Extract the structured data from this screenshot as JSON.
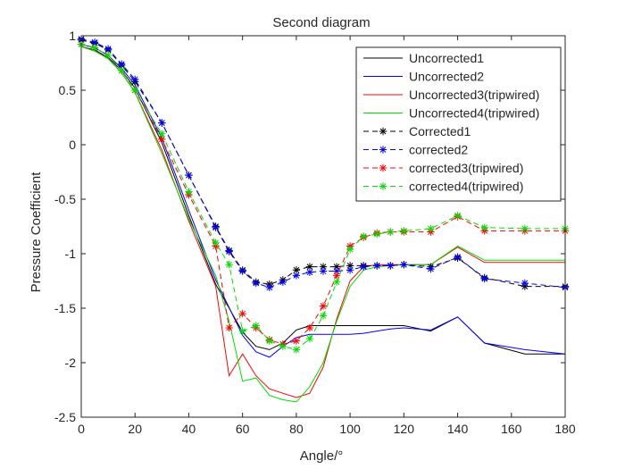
{
  "chart_data": {
    "type": "line",
    "title": "Second diagram",
    "xlabel": "Angle/°",
    "ylabel": "Pressure Coefficient",
    "xlim": [
      0,
      180
    ],
    "ylim": [
      -2.5,
      1
    ],
    "xticks": [
      0,
      20,
      40,
      60,
      80,
      100,
      120,
      140,
      160,
      180
    ],
    "xtick_labels": [
      "0",
      "20",
      "40",
      "60",
      "80",
      "100",
      "120",
      "140",
      "160",
      "180"
    ],
    "yticks": [
      -2.5,
      -2,
      -1.5,
      -1,
      -0.5,
      0,
      0.5,
      1
    ],
    "ytick_labels": [
      "-2.5",
      "-2",
      "-1.5",
      "-1",
      "-0.5",
      "0",
      "0.5",
      "1"
    ],
    "grid": false,
    "legend_position": "top-right",
    "series": [
      {
        "name": "Uncorrected1",
        "color": "#000000",
        "style": "solid",
        "marker": "none",
        "x": [
          0,
          5,
          10,
          15,
          20,
          30,
          40,
          50,
          60,
          65,
          70,
          75,
          80,
          85,
          90,
          95,
          100,
          105,
          110,
          115,
          120,
          130,
          140,
          150,
          165,
          180
        ],
        "y": [
          0.9,
          0.87,
          0.8,
          0.68,
          0.52,
          0.02,
          -0.65,
          -1.28,
          -1.72,
          -1.85,
          -1.88,
          -1.82,
          -1.7,
          -1.66,
          -1.66,
          -1.66,
          -1.66,
          -1.66,
          -1.66,
          -1.66,
          -1.66,
          -1.71,
          -1.58,
          -1.82,
          -1.92,
          -1.92
        ]
      },
      {
        "name": "Uncorrected2",
        "color": "#0000ff",
        "style": "solid",
        "marker": "none",
        "x": [
          0,
          5,
          10,
          15,
          20,
          30,
          40,
          50,
          60,
          65,
          70,
          75,
          80,
          85,
          90,
          95,
          100,
          105,
          110,
          115,
          120,
          130,
          140,
          150,
          165,
          180
        ],
        "y": [
          0.92,
          0.89,
          0.82,
          0.7,
          0.55,
          0.06,
          -0.6,
          -1.24,
          -1.75,
          -1.9,
          -1.95,
          -1.85,
          -1.77,
          -1.74,
          -1.74,
          -1.74,
          -1.74,
          -1.73,
          -1.71,
          -1.69,
          -1.68,
          -1.7,
          -1.58,
          -1.82,
          -1.88,
          -1.92
        ]
      },
      {
        "name": "Uncorrected3(tripwired)",
        "color": "#ff0000",
        "style": "solid",
        "marker": "none",
        "x": [
          0,
          5,
          10,
          15,
          20,
          30,
          40,
          50,
          55,
          60,
          65,
          70,
          75,
          80,
          85,
          90,
          95,
          100,
          105,
          110,
          115,
          120,
          130,
          140,
          150,
          165,
          180
        ],
        "y": [
          0.9,
          0.86,
          0.79,
          0.66,
          0.48,
          -0.05,
          -0.7,
          -1.3,
          -2.12,
          -1.92,
          -2.12,
          -2.24,
          -2.28,
          -2.32,
          -2.28,
          -2.04,
          -1.6,
          -1.25,
          -1.12,
          -1.1,
          -1.1,
          -1.1,
          -1.1,
          -0.94,
          -1.08,
          -1.08,
          -1.08
        ]
      },
      {
        "name": "Uncorrected4(tripwired)",
        "color": "#00dd00",
        "style": "solid",
        "marker": "none",
        "x": [
          0,
          5,
          10,
          15,
          20,
          30,
          40,
          50,
          55,
          60,
          65,
          70,
          75,
          80,
          85,
          90,
          95,
          100,
          105,
          110,
          115,
          120,
          130,
          140,
          150,
          165,
          180
        ],
        "y": [
          0.9,
          0.86,
          0.79,
          0.66,
          0.48,
          -0.08,
          -0.68,
          -1.2,
          -1.62,
          -2.17,
          -2.14,
          -2.3,
          -2.34,
          -2.36,
          -2.22,
          -2.0,
          -1.62,
          -1.3,
          -1.15,
          -1.12,
          -1.11,
          -1.1,
          -1.1,
          -0.93,
          -1.06,
          -1.06,
          -1.06
        ]
      },
      {
        "name": "Corrected1",
        "color": "#000000",
        "style": "dashed",
        "marker": "*",
        "x": [
          0,
          5,
          10,
          15,
          20,
          30,
          40,
          50,
          55,
          60,
          65,
          70,
          75,
          80,
          85,
          90,
          95,
          100,
          105,
          110,
          115,
          120,
          130,
          140,
          150,
          165,
          180
        ],
        "y": [
          0.96,
          0.93,
          0.87,
          0.73,
          0.58,
          0.2,
          -0.28,
          -0.75,
          -0.97,
          -1.15,
          -1.26,
          -1.28,
          -1.24,
          -1.15,
          -1.12,
          -1.12,
          -1.12,
          -1.11,
          -1.11,
          -1.11,
          -1.11,
          -1.1,
          -1.12,
          -1.04,
          -1.22,
          -1.3,
          -1.3
        ]
      },
      {
        "name": "corrected2",
        "color": "#0000ff",
        "style": "dashed",
        "marker": "*",
        "x": [
          0,
          5,
          10,
          15,
          20,
          30,
          40,
          50,
          55,
          60,
          65,
          70,
          75,
          80,
          85,
          90,
          95,
          100,
          105,
          110,
          115,
          120,
          130,
          140,
          150,
          165,
          180
        ],
        "y": [
          0.97,
          0.94,
          0.88,
          0.74,
          0.6,
          0.2,
          -0.28,
          -0.76,
          -0.98,
          -1.16,
          -1.27,
          -1.31,
          -1.26,
          -1.2,
          -1.17,
          -1.16,
          -1.16,
          -1.15,
          -1.12,
          -1.11,
          -1.11,
          -1.1,
          -1.14,
          -1.03,
          -1.23,
          -1.27,
          -1.31
        ]
      },
      {
        "name": "corrected3(tripwired)",
        "color": "#ff0000",
        "style": "dashed",
        "marker": "*",
        "x": [
          0,
          5,
          10,
          15,
          20,
          30,
          40,
          50,
          55,
          60,
          65,
          70,
          75,
          80,
          85,
          90,
          95,
          100,
          105,
          110,
          115,
          120,
          130,
          140,
          150,
          165,
          180
        ],
        "y": [
          0.92,
          0.89,
          0.82,
          0.68,
          0.5,
          0.05,
          -0.46,
          -0.93,
          -1.68,
          -1.55,
          -1.68,
          -1.79,
          -1.83,
          -1.8,
          -1.68,
          -1.48,
          -1.2,
          -0.93,
          -0.85,
          -0.81,
          -0.8,
          -0.8,
          -0.8,
          -0.66,
          -0.79,
          -0.79,
          -0.79
        ]
      },
      {
        "name": "corrected4(tripwired)",
        "color": "#00dd00",
        "style": "dashed",
        "marker": "*",
        "x": [
          0,
          5,
          10,
          15,
          20,
          30,
          40,
          50,
          55,
          60,
          65,
          70,
          75,
          80,
          85,
          90,
          95,
          100,
          105,
          110,
          115,
          120,
          130,
          140,
          150,
          165,
          180
        ],
        "y": [
          0.92,
          0.89,
          0.82,
          0.68,
          0.5,
          0.1,
          -0.43,
          -0.9,
          -1.1,
          -1.71,
          -1.66,
          -1.8,
          -1.85,
          -1.88,
          -1.78,
          -1.57,
          -1.26,
          -0.96,
          -0.84,
          -0.82,
          -0.8,
          -0.79,
          -0.77,
          -0.65,
          -0.76,
          -0.77,
          -0.77
        ]
      }
    ]
  }
}
